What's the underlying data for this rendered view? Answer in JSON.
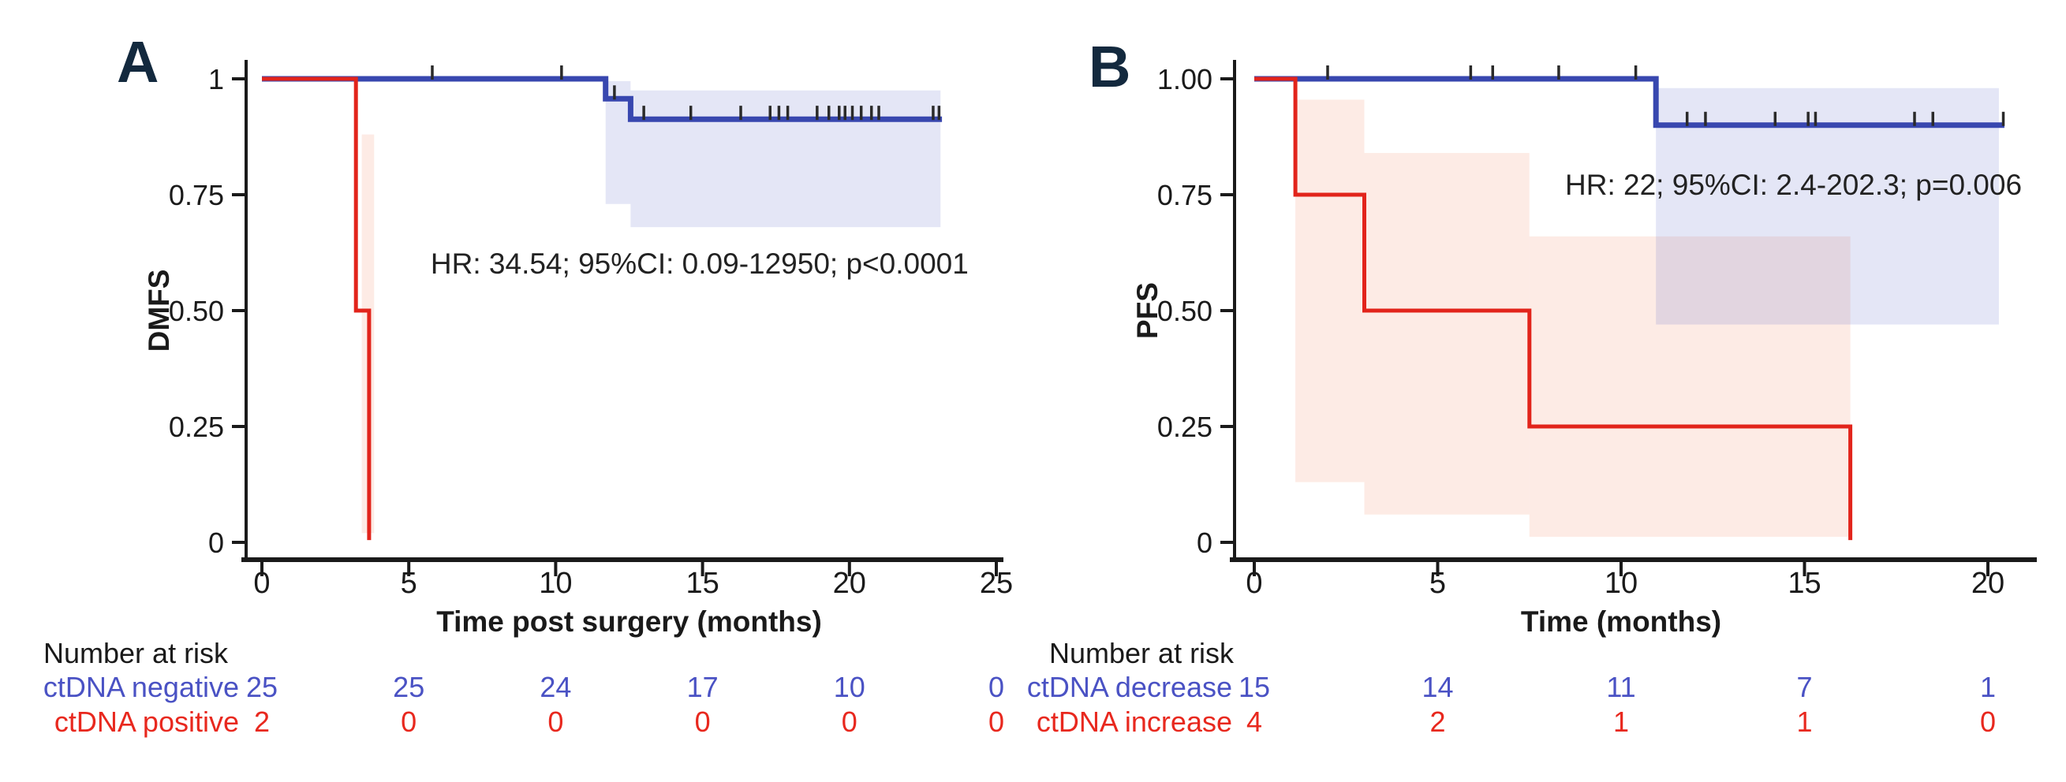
{
  "figure": {
    "description": "Kaplan-Meier survival curves with confidence bands and number-at-risk tables",
    "background": "#ffffff"
  },
  "colors": {
    "axis": "#1a1a1a",
    "tick_label": "#1a1a1a",
    "censor": "#2a2a2a",
    "annotation": "#222222",
    "panel_letter": "#13293e",
    "risk_title": "#1a1a1a",
    "curve_blue": "#3847af",
    "curve_red": "#e2241b",
    "ci_blue": "#5a64c8",
    "ci_red": "#f07a50",
    "risk_blue": "#4a52c4",
    "risk_red": "#e8281e"
  },
  "chart_data": [
    {
      "type": "line",
      "subtype": "kaplan_meier",
      "panel_label": "A",
      "ylabel": "DMFS",
      "xlabel": "Time post surgery (months)",
      "annotation": "HR: 34.54; 95%CI: 0.09-12950; p<0.0001",
      "annotation_xy": [
        14.9,
        0.6
      ],
      "xticks": [
        0,
        5,
        10,
        15,
        20,
        25
      ],
      "xlim": [
        0,
        25.3
      ],
      "ylim": [
        0,
        1
      ],
      "grid": false,
      "legend_position": "none",
      "yticks": [
        {
          "value": 1,
          "label": "1"
        },
        {
          "value": 0.75,
          "label": "0.75"
        },
        {
          "value": 0.5,
          "label": "0.50"
        },
        {
          "value": 0.25,
          "label": "0.25"
        },
        {
          "value": 0,
          "label": "0"
        }
      ],
      "series": [
        {
          "name": "ctDNA negative",
          "color": "#3847af",
          "line_width": 7,
          "ci_fill": "#5a64c8",
          "ci_opacity": 0.16,
          "steps": [
            [
              0,
              1
            ],
            [
              11.7,
              1
            ],
            [
              11.7,
              0.957
            ],
            [
              12.55,
              0.957
            ],
            [
              12.55,
              0.913
            ],
            [
              23.15,
              0.913
            ]
          ],
          "censor_marks": [
            [
              5.8,
              1
            ],
            [
              10.2,
              1
            ],
            [
              12.0,
              0.957
            ],
            [
              13.0,
              0.913
            ],
            [
              14.6,
              0.913
            ],
            [
              16.3,
              0.913
            ],
            [
              17.3,
              0.913
            ],
            [
              17.6,
              0.913
            ],
            [
              17.9,
              0.913
            ],
            [
              18.9,
              0.913
            ],
            [
              19.3,
              0.913
            ],
            [
              19.65,
              0.913
            ],
            [
              19.85,
              0.913
            ],
            [
              20.1,
              0.913
            ],
            [
              20.4,
              0.913
            ],
            [
              20.75,
              0.913
            ],
            [
              21.0,
              0.913
            ],
            [
              22.85,
              0.913
            ],
            [
              23.05,
              0.913
            ]
          ],
          "ci_bands": [
            {
              "x0": 11.7,
              "x1": 12.55,
              "y0": 0.73,
              "y1": 0.995
            },
            {
              "x0": 12.55,
              "x1": 23.1,
              "y0": 0.68,
              "y1": 0.975
            }
          ]
        },
        {
          "name": "ctDNA positive",
          "color": "#e2241b",
          "line_width": 5,
          "ci_fill": "#f07a50",
          "ci_opacity": 0.15,
          "steps": [
            [
              0,
              1
            ],
            [
              3.2,
              1
            ],
            [
              3.2,
              0.5
            ],
            [
              3.65,
              0.5
            ],
            [
              3.65,
              0.005
            ]
          ],
          "censor_marks": [],
          "ci_bands": [
            {
              "x0": 3.4,
              "x1": 3.82,
              "y0": 0.02,
              "y1": 0.88
            }
          ]
        }
      ],
      "risk_table": {
        "title": "Number at risk",
        "time_points": [
          0,
          5,
          10,
          15,
          20,
          25
        ],
        "rows": [
          {
            "label": "ctDNA negative",
            "color": "#4a52c4",
            "values": [
              25,
              25,
              24,
              17,
              10,
              0
            ]
          },
          {
            "label": "ctDNA positive",
            "color": "#e8281e",
            "values": [
              2,
              0,
              0,
              0,
              0,
              0
            ]
          }
        ]
      }
    },
    {
      "type": "line",
      "subtype": "kaplan_meier",
      "panel_label": "B",
      "ylabel": "PFS",
      "xlabel": "Time (months)",
      "annotation": "HR: 22; 95%CI: 2.4-202.3; p=0.006",
      "annotation_xy": [
        14.7,
        0.77
      ],
      "xticks": [
        0,
        5,
        10,
        15,
        20
      ],
      "xlim": [
        0,
        21.3
      ],
      "ylim": [
        0,
        1
      ],
      "grid": false,
      "legend_position": "none",
      "yticks": [
        {
          "value": 1,
          "label": "1.00"
        },
        {
          "value": 0.75,
          "label": "0.75"
        },
        {
          "value": 0.5,
          "label": "0.50"
        },
        {
          "value": 0.25,
          "label": "0.25"
        },
        {
          "value": 0,
          "label": "0"
        }
      ],
      "series": [
        {
          "name": "ctDNA decrease",
          "color": "#3847af",
          "line_width": 7,
          "ci_fill": "#5a64c8",
          "ci_opacity": 0.16,
          "steps": [
            [
              0,
              1
            ],
            [
              10.95,
              1
            ],
            [
              10.95,
              0.9
            ],
            [
              20.45,
              0.9
            ]
          ],
          "censor_marks": [
            [
              2.0,
              1
            ],
            [
              5.9,
              1
            ],
            [
              6.5,
              1
            ],
            [
              8.3,
              1
            ],
            [
              10.4,
              1
            ],
            [
              11.8,
              0.9
            ],
            [
              12.3,
              0.9
            ],
            [
              14.2,
              0.9
            ],
            [
              15.1,
              0.9
            ],
            [
              15.3,
              0.9
            ],
            [
              18.0,
              0.9
            ],
            [
              18.5,
              0.9
            ],
            [
              20.42,
              0.9
            ]
          ],
          "ci_bands": [
            {
              "x0": 10.95,
              "x1": 20.3,
              "y0": 0.47,
              "y1": 0.98
            }
          ]
        },
        {
          "name": "ctDNA increase",
          "color": "#e2241b",
          "line_width": 5,
          "ci_fill": "#f07a50",
          "ci_opacity": 0.15,
          "steps": [
            [
              0,
              1
            ],
            [
              1.12,
              1
            ],
            [
              1.12,
              0.75
            ],
            [
              3.0,
              0.75
            ],
            [
              3.0,
              0.5
            ],
            [
              7.5,
              0.5
            ],
            [
              7.5,
              0.25
            ],
            [
              16.25,
              0.25
            ],
            [
              16.25,
              0.005
            ]
          ],
          "censor_marks": [],
          "ci_bands": [
            {
              "x0": 1.12,
              "x1": 3.0,
              "y0": 0.13,
              "y1": 0.955
            },
            {
              "x0": 3.0,
              "x1": 7.5,
              "y0": 0.06,
              "y1": 0.84
            },
            {
              "x0": 7.5,
              "x1": 16.25,
              "y0": 0.012,
              "y1": 0.66
            }
          ]
        }
      ],
      "risk_table": {
        "title": "Number at risk",
        "time_points": [
          0,
          5,
          10,
          15,
          20
        ],
        "rows": [
          {
            "label": "ctDNA decrease",
            "color": "#4a52c4",
            "values": [
              15,
              14,
              11,
              7,
              1
            ]
          },
          {
            "label": "ctDNA increase",
            "color": "#e8281e",
            "values": [
              4,
              2,
              1,
              1,
              0
            ]
          }
        ]
      }
    }
  ]
}
